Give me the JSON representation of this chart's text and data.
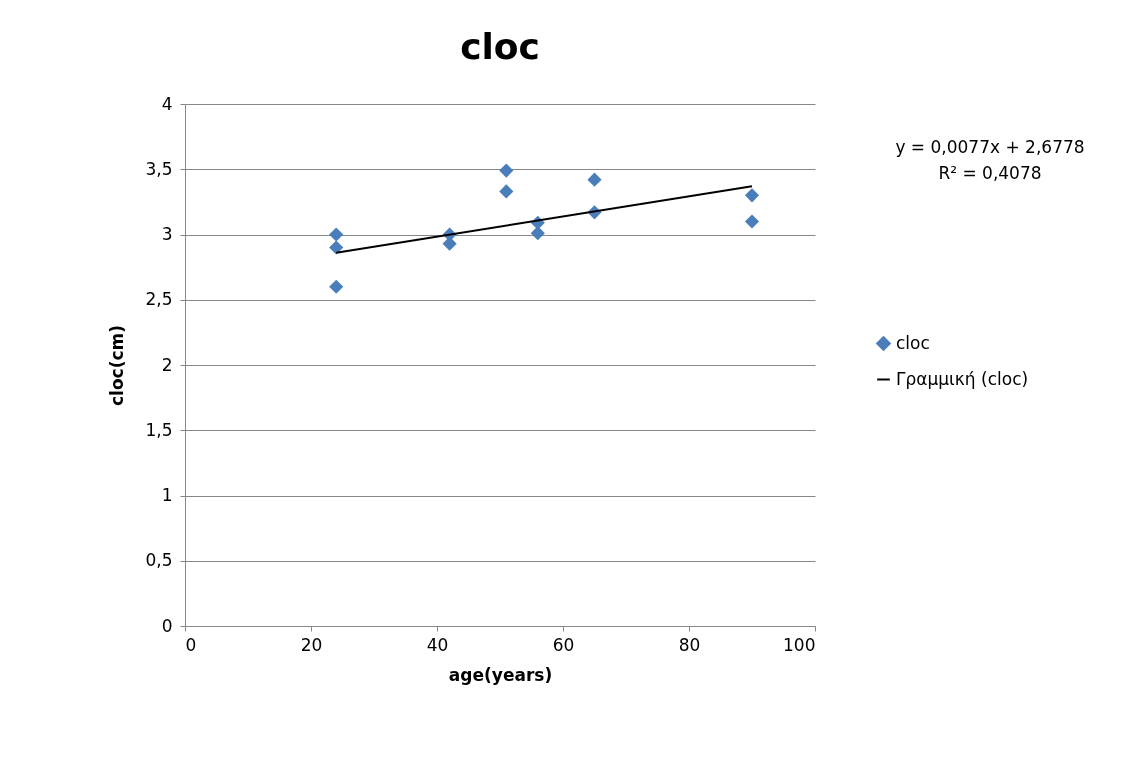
{
  "chart_data": {
    "type": "scatter",
    "title": "cloc",
    "xlabel": "age(years)",
    "ylabel": "cloc(cm)",
    "xlim": [
      0,
      100
    ],
    "xticks": [
      0,
      20,
      40,
      60,
      80,
      100
    ],
    "ylim": [
      0,
      4
    ],
    "yticks": [
      0,
      {
        "value": 0.5,
        "label": "0,5"
      },
      1,
      {
        "value": 1.5,
        "label": "1,5"
      },
      2,
      {
        "value": 2.5,
        "label": "2,5"
      },
      3,
      {
        "value": 3.5,
        "label": "3,5"
      },
      4
    ],
    "grid": "y",
    "legend": "right",
    "annotations": [
      "y = 0,0077x + 2,6778",
      "R² = 0,4078"
    ],
    "series": [
      {
        "name": "cloc",
        "color": "#4a7ebb",
        "marker": "diamond",
        "x": [
          24,
          24,
          24,
          42,
          42,
          51,
          51,
          56,
          56,
          65,
          65,
          90,
          90
        ],
        "values": [
          3.0,
          2.9,
          2.6,
          3.0,
          2.93,
          3.49,
          3.33,
          3.09,
          3.01,
          3.42,
          3.17,
          3.3,
          3.1
        ]
      },
      {
        "name": "Γραμμική (cloc)",
        "type": "line",
        "marker": "none",
        "color": "#000000",
        "x": [
          24,
          90
        ],
        "values": [
          2.86,
          3.37
        ]
      }
    ]
  }
}
